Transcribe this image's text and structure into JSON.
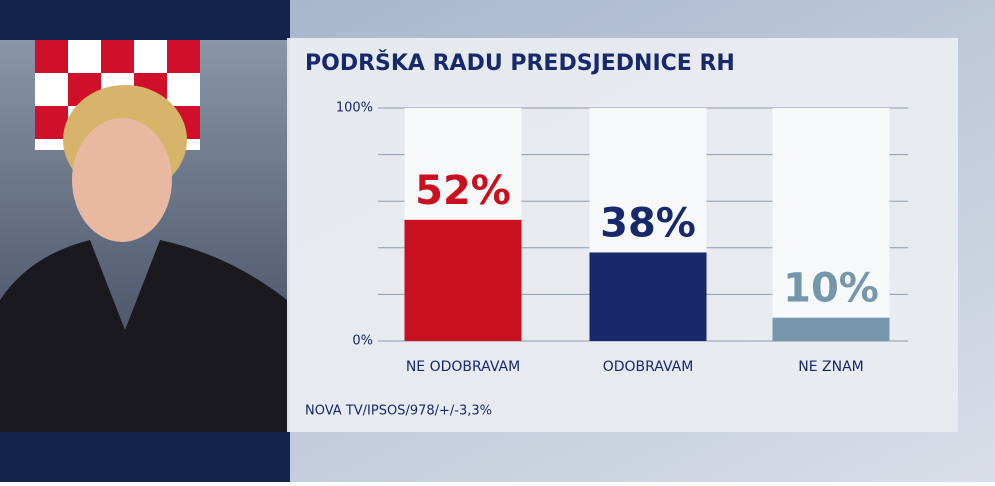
{
  "chart_data": {
    "type": "bar",
    "title": "PODRŠKA RADU PREDSJEDNICE RH",
    "categories": [
      "NE ODOBRAVAM",
      "ODOBRAVAM",
      "NE ZNAM"
    ],
    "values": [
      52,
      38,
      10
    ],
    "value_labels": [
      "52%",
      "38%",
      "10%"
    ],
    "colors": [
      "#c8101f",
      "#17286b",
      "#7596ab"
    ],
    "ylim": [
      0,
      100
    ],
    "yticks": [
      {
        "value": 0,
        "label": "0%"
      },
      {
        "value": 100,
        "label": "100%"
      }
    ],
    "ygrid": [
      0,
      20,
      40,
      60,
      80,
      100
    ],
    "source": "NOVA TV/IPSOS/978/+/-3,3%"
  }
}
